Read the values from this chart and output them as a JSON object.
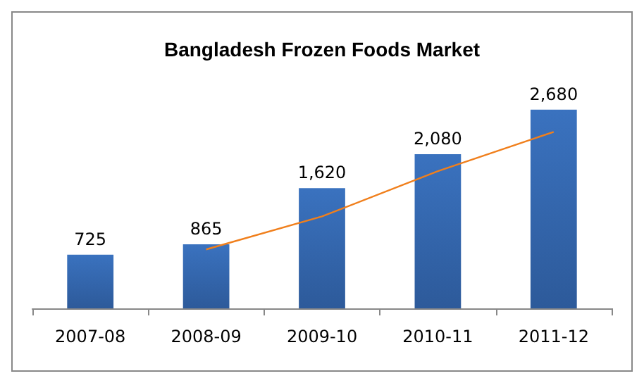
{
  "chart_data": {
    "type": "bar",
    "title": "Bangladesh Frozen Foods Market",
    "categories": [
      "2007-08",
      "2008-09",
      "2009-10",
      "2010-11",
      "2011-12"
    ],
    "series": [
      {
        "color": "#3a72bf",
        "values": [
          725,
          865,
          1620,
          2080,
          2680
        ],
        "value_labels": [
          "725",
          "865",
          "1,620",
          "2,080",
          "2,680"
        ]
      },
      {
        "type": "line",
        "color": "#f07f1c",
        "values": [
          null,
          795,
          1240,
          1850,
          2380
        ],
        "marker": "none"
      }
    ]
  }
}
